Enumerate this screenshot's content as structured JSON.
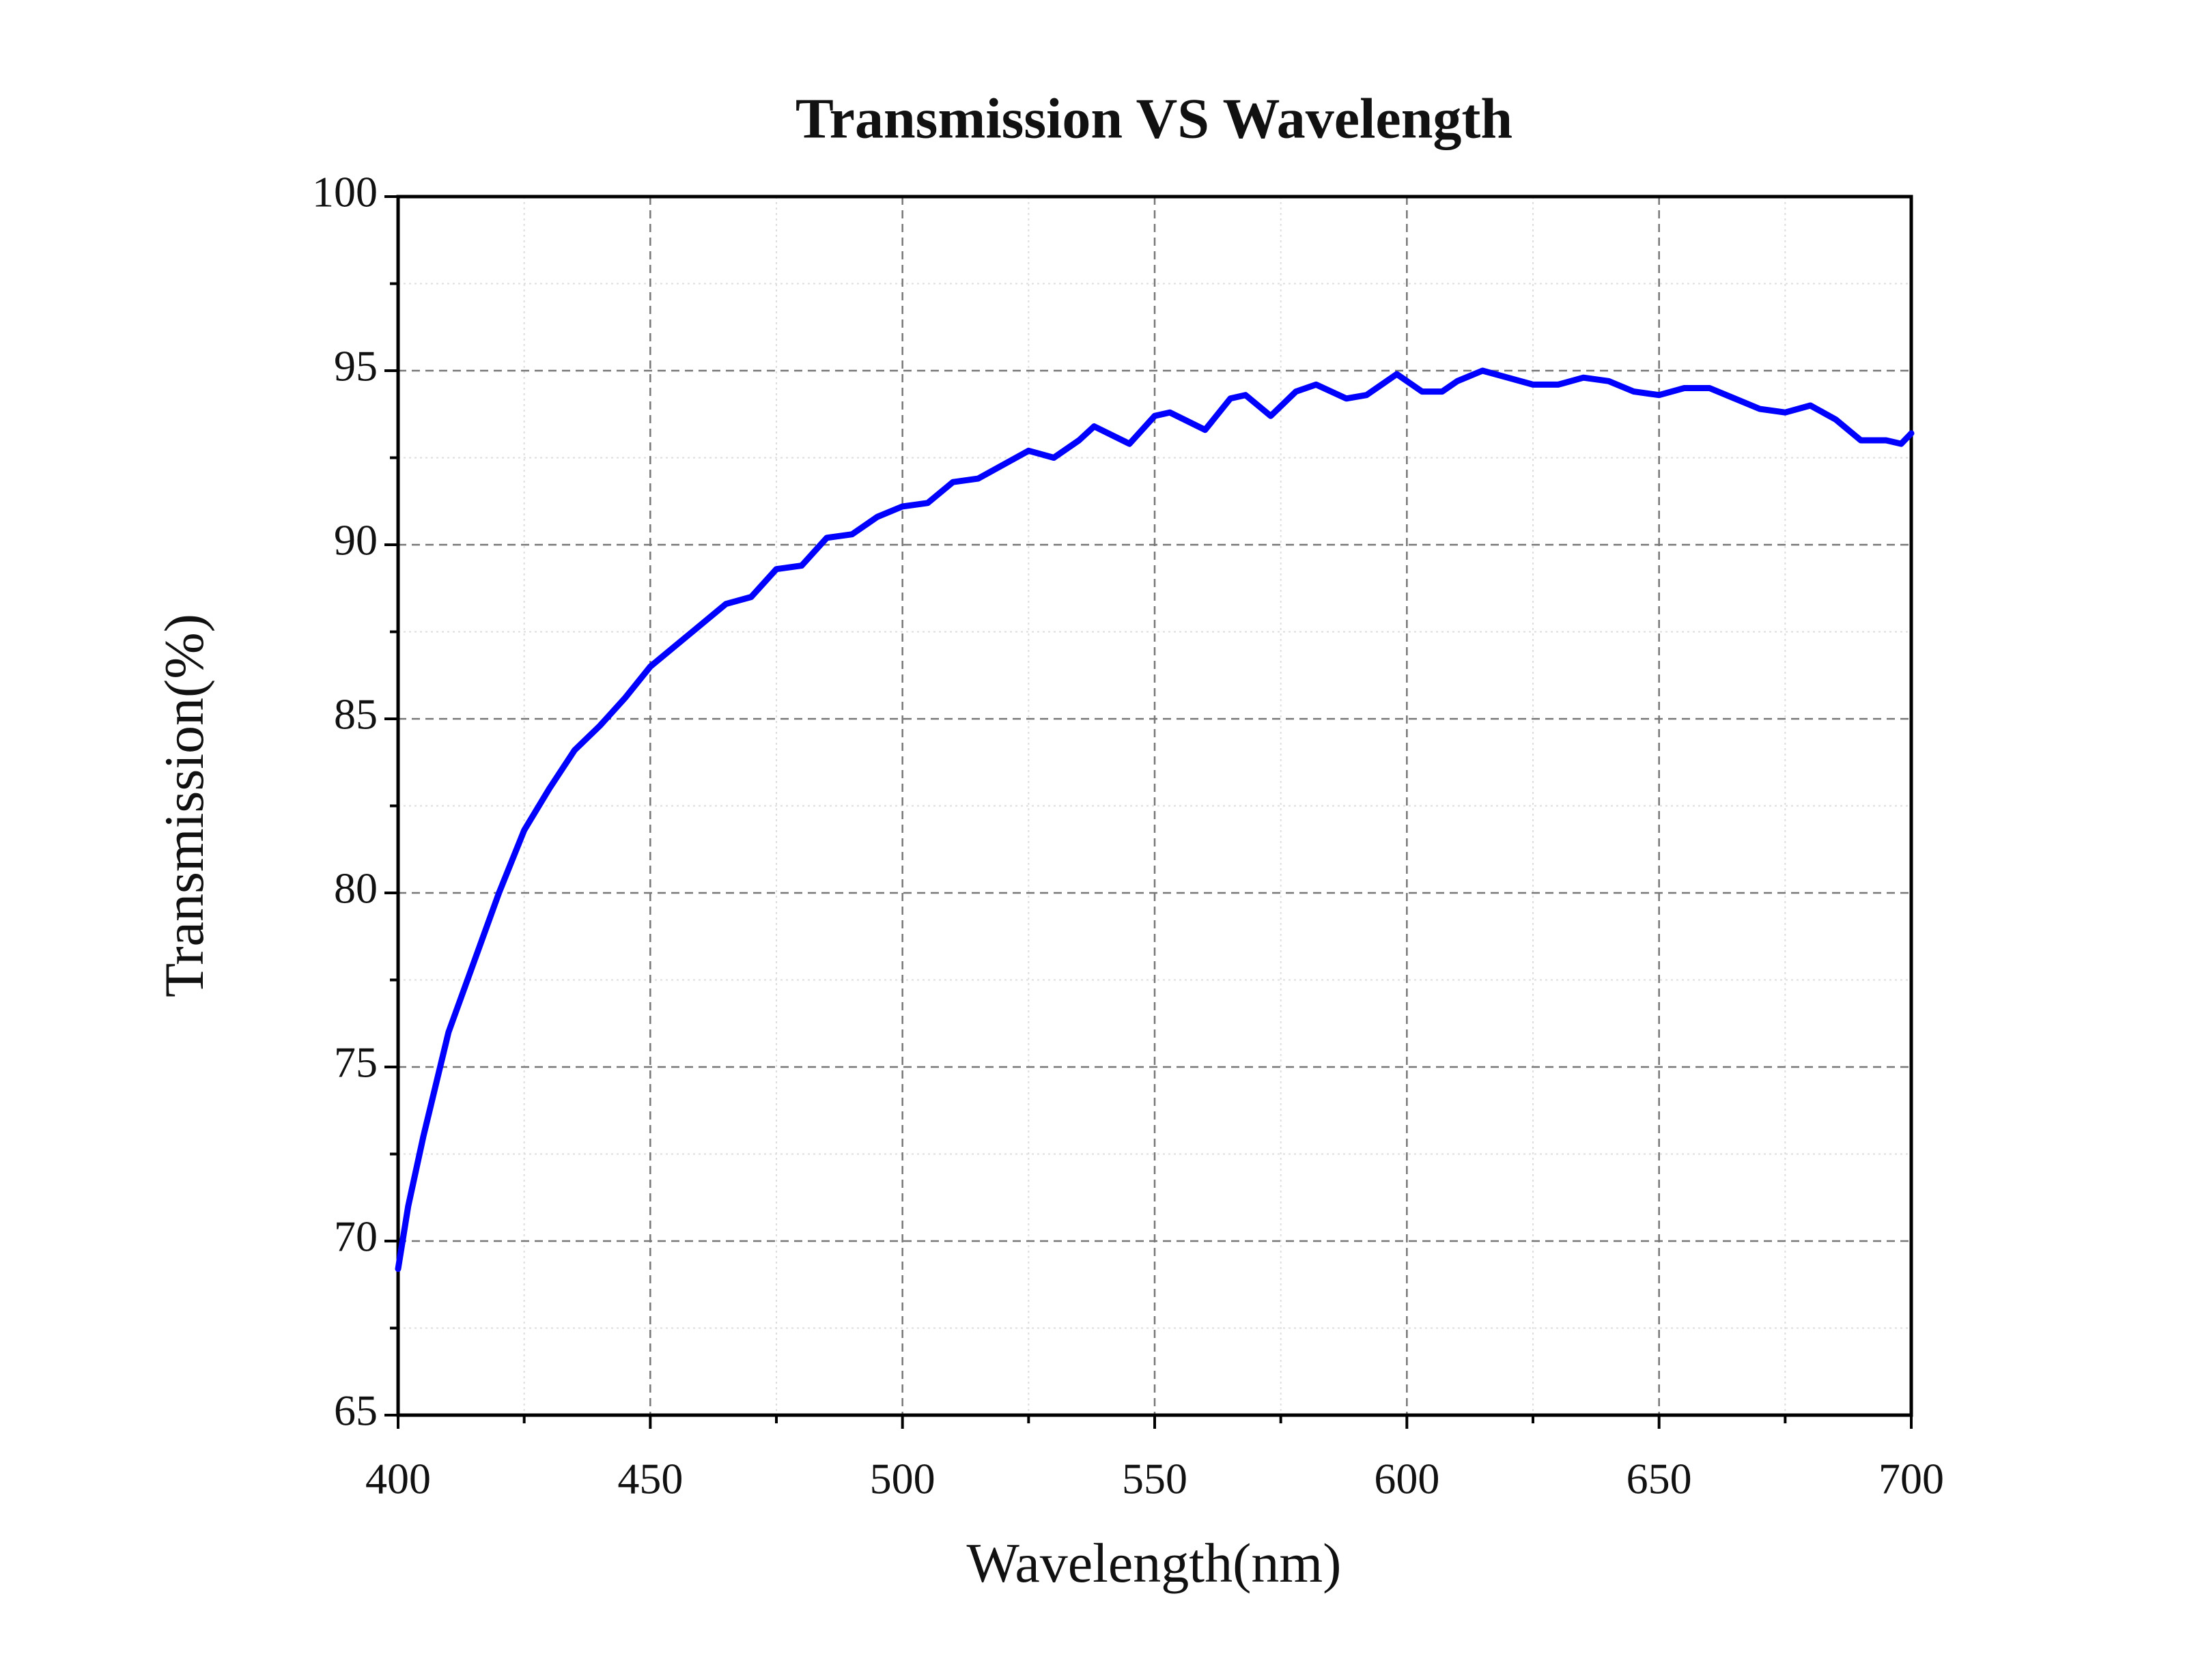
{
  "chart_data": {
    "type": "line",
    "title": "Transmission  VS  Wavelength",
    "x_label": "Wavelength(nm)",
    "y_label": "Transmission(%)",
    "x": [
      400,
      402,
      405,
      410,
      415,
      420,
      425,
      430,
      435,
      440,
      445,
      450,
      455,
      460,
      465,
      470,
      475,
      480,
      485,
      490,
      495,
      500,
      505,
      510,
      515,
      520,
      525,
      530,
      535,
      538,
      545,
      550,
      553,
      560,
      565,
      568,
      573,
      578,
      582,
      588,
      592,
      598,
      603,
      607,
      610,
      615,
      620,
      625,
      630,
      635,
      640,
      645,
      650,
      655,
      660,
      665,
      670,
      675,
      680,
      685,
      690,
      695,
      698,
      700
    ],
    "series": [
      {
        "name": "Transmission",
        "color": "#0000ff",
        "values": [
          69.2,
          71,
          73,
          76,
          78,
          80,
          81.8,
          83,
          84.1,
          84.8,
          85.6,
          86.5,
          87.1,
          87.7,
          88.3,
          88.5,
          89.3,
          89.4,
          90.2,
          90.3,
          90.8,
          91.1,
          91.2,
          91.8,
          91.9,
          92.3,
          92.7,
          92.5,
          93,
          93.4,
          92.9,
          93.7,
          93.8,
          93.3,
          94.2,
          94.3,
          93.7,
          94.4,
          94.6,
          94.2,
          94.3,
          94.9,
          94.4,
          94.4,
          94.7,
          95,
          94.8,
          94.6,
          94.6,
          94.8,
          94.7,
          94.4,
          94.3,
          94.5,
          94.5,
          94.2,
          93.9,
          93.8,
          94,
          93.6,
          93,
          93,
          92.9,
          93.2
        ]
      }
    ],
    "xlim": [
      400,
      700
    ],
    "ylim": [
      65,
      100
    ],
    "xticks": [
      400,
      450,
      500,
      550,
      600,
      650,
      700
    ],
    "yticks": [
      65,
      70,
      75,
      80,
      85,
      90,
      95,
      100
    ],
    "minor_xticks": [
      425,
      475,
      525,
      575,
      625,
      675
    ],
    "minor_yticks": [
      67.5,
      72.5,
      77.5,
      82.5,
      87.5,
      92.5,
      97.5
    ],
    "grid": true
  }
}
